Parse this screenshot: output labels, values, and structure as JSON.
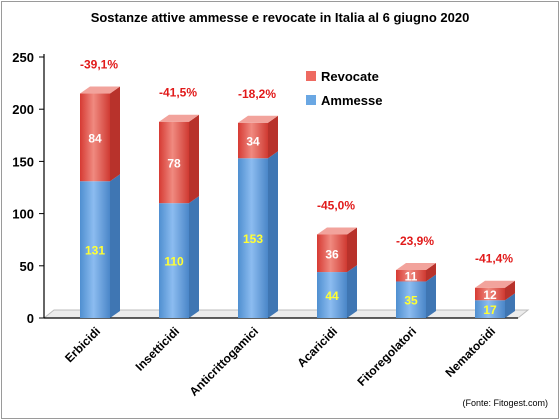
{
  "chart_data": {
    "type": "bar",
    "stacked": true,
    "title": "Sostanze attive ammesse e revocate in Italia al 6 giugno 2020",
    "categories": [
      "Erbicidi",
      "Insetticidi",
      "Anticrittogamici",
      "Acaricidi",
      "Fitoregolatori",
      "Nematocidi"
    ],
    "series": [
      {
        "name": "Ammesse",
        "values": [
          131,
          110,
          153,
          44,
          35,
          17
        ],
        "color": "#5b9bd5"
      },
      {
        "name": "Revocate",
        "values": [
          84,
          78,
          34,
          36,
          11,
          12
        ],
        "color": "#e8413a"
      }
    ],
    "annotations": [
      "-39,1%",
      "-41,5%",
      "-18,2%",
      "-45,0%",
      "-23,9%",
      "-41,4%"
    ],
    "annotation_color": "#e11a1a",
    "ylim": [
      0,
      250
    ],
    "yticks": [
      0,
      50,
      100,
      150,
      200,
      250
    ],
    "legend_position": "top-right",
    "grid": false,
    "source": "(Fonte: Fitogest.com)",
    "label_colors": {
      "ammesse": "#ffff33",
      "revocate": "#ffffff"
    }
  }
}
